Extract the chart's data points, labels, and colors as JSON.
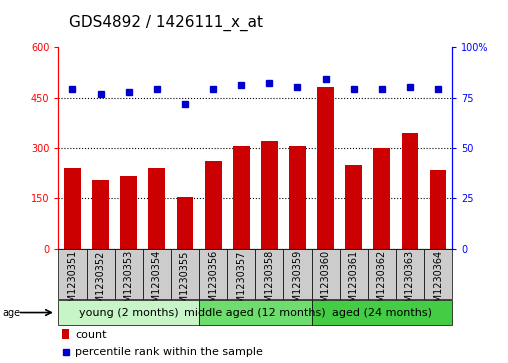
{
  "title": "GDS4892 / 1426111_x_at",
  "samples": [
    "GSM1230351",
    "GSM1230352",
    "GSM1230353",
    "GSM1230354",
    "GSM1230355",
    "GSM1230356",
    "GSM1230357",
    "GSM1230358",
    "GSM1230359",
    "GSM1230360",
    "GSM1230361",
    "GSM1230362",
    "GSM1230363",
    "GSM1230364"
  ],
  "counts": [
    240,
    205,
    215,
    240,
    155,
    260,
    305,
    320,
    305,
    480,
    250,
    300,
    345,
    235
  ],
  "percentile_ranks": [
    79,
    77,
    78,
    79,
    72,
    79,
    81,
    82,
    80,
    84,
    79,
    79,
    80,
    79
  ],
  "groups": [
    {
      "label": "young (2 months)",
      "start": 0,
      "end": 5
    },
    {
      "label": "middle aged (12 months)",
      "start": 5,
      "end": 9
    },
    {
      "label": "aged (24 months)",
      "start": 9,
      "end": 14
    }
  ],
  "group_colors": [
    "#c8f5c8",
    "#6ddd6d",
    "#44cc44"
  ],
  "ylim_left": [
    0,
    600
  ],
  "ylim_right": [
    0,
    100
  ],
  "yticks_left": [
    0,
    150,
    300,
    450,
    600
  ],
  "yticks_right": [
    0,
    25,
    50,
    75,
    100
  ],
  "bar_color": "#CC0000",
  "dot_color": "#0000CC",
  "sample_box_color": "#cccccc",
  "title_fontsize": 11,
  "tick_fontsize": 7,
  "group_label_fontsize": 8,
  "legend_fontsize": 8,
  "grid_line_values": [
    150,
    300,
    450
  ]
}
